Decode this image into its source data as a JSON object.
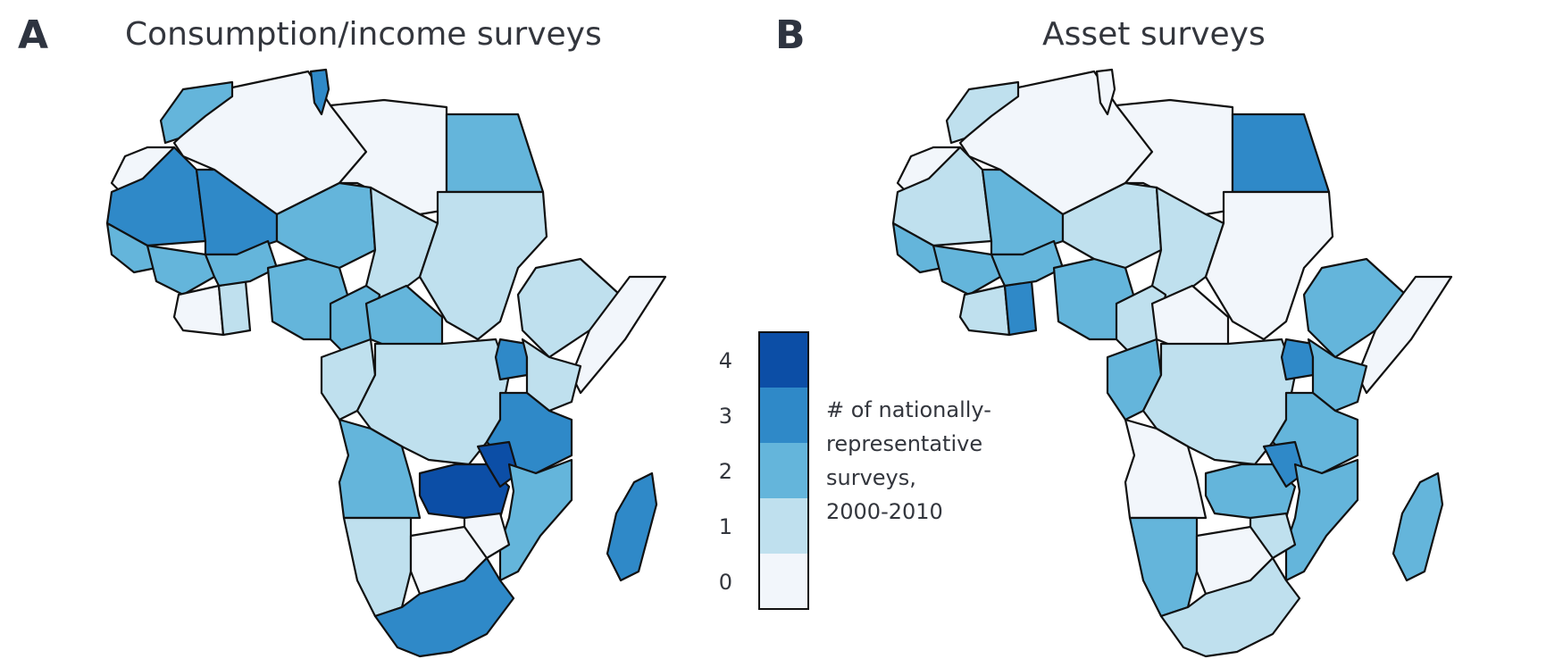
{
  "panels": [
    {
      "letter": "A",
      "title": "Consumption/income surveys"
    },
    {
      "letter": "B",
      "title": "Asset surveys"
    }
  ],
  "legend": {
    "caption_lines": [
      "# of nationally-",
      "representative",
      "surveys,",
      "2000-2010"
    ],
    "ticks": [
      "0",
      "1",
      "2",
      "3",
      "4"
    ],
    "colors": [
      "#f2f6fb",
      "#bfe0ee",
      "#64b5db",
      "#2f89c8",
      "#0c4ea6"
    ]
  }
}
